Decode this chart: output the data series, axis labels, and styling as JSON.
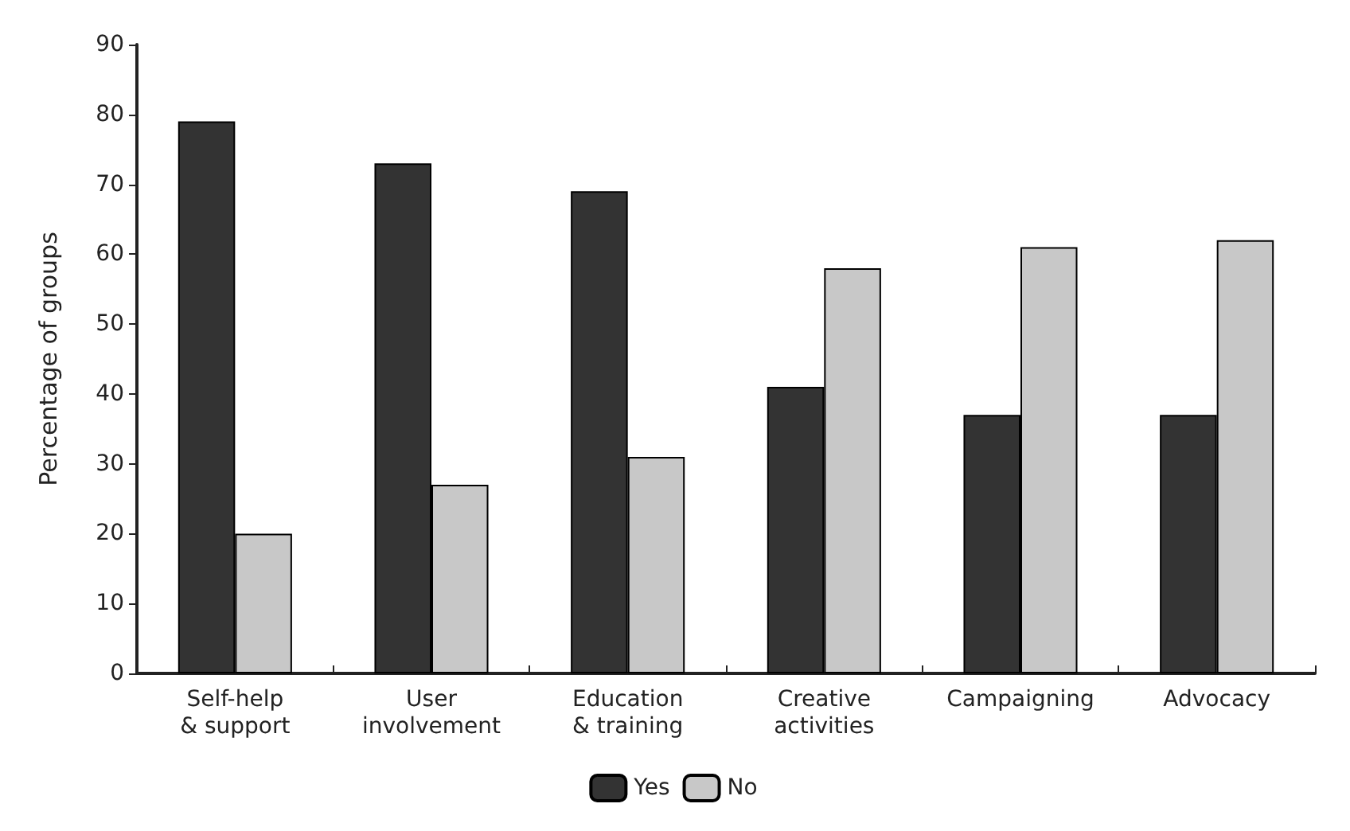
{
  "chart_data": {
    "type": "bar",
    "ylabel": "Percentage of groups",
    "categories": [
      "Self-help\n& support",
      "User\ninvolvement",
      "Education\n& training",
      "Creative\nactivities",
      "Campaigning",
      "Advocacy"
    ],
    "series": [
      {
        "name": "Yes",
        "color": "#333333",
        "values": [
          79,
          73,
          69,
          41,
          37,
          37
        ]
      },
      {
        "name": "No",
        "color": "#c8c8c8",
        "values": [
          20,
          27,
          31,
          58,
          61,
          62
        ]
      }
    ],
    "ylim": [
      0,
      90
    ],
    "yticks": [
      0,
      10,
      20,
      30,
      40,
      50,
      60,
      70,
      80,
      90
    ],
    "grid": false,
    "legend": "bottom"
  }
}
